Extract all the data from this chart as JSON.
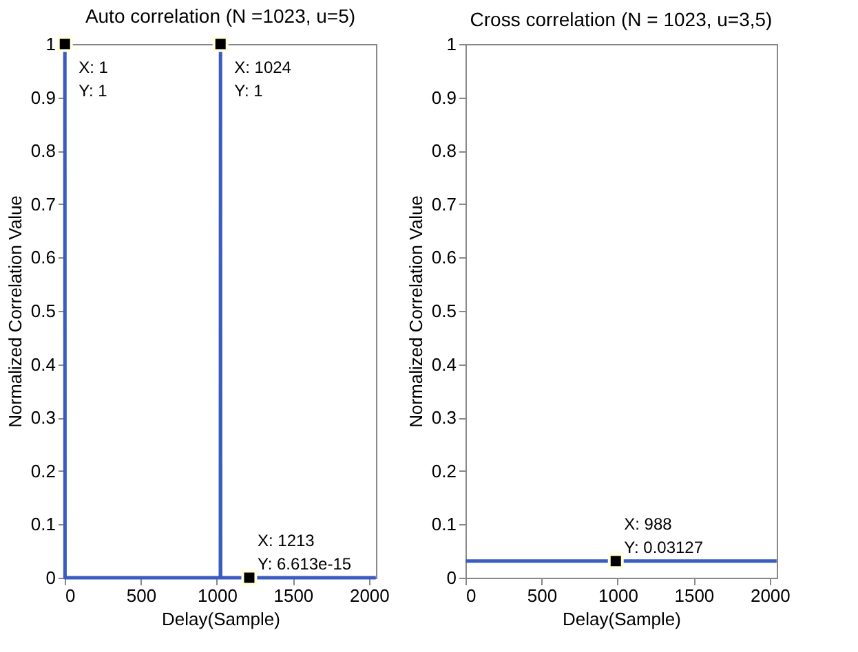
{
  "chart_data": [
    {
      "type": "line",
      "title": "Auto correlation (N =1023, u=5)",
      "xlabel": "Delay(Sample)",
      "ylabel": "Normalized Correlation Value",
      "xlim": [
        0,
        2046
      ],
      "xticks": [
        0,
        500,
        1000,
        1500,
        2000
      ],
      "ylim": [
        0,
        1
      ],
      "yticks": [
        0,
        0.1,
        0.2,
        0.3,
        0.4,
        0.5,
        0.6,
        0.7,
        0.8,
        0.9,
        1
      ],
      "grid": false,
      "series": [
        {
          "color": "#3a5bbf",
          "x": [
            1,
            2,
            1023,
            1024,
            1025,
            2045
          ],
          "values": [
            1,
            0,
            0,
            1,
            0,
            0
          ]
        }
      ],
      "annotations": [
        {
          "text": "X: 1\nY: 1",
          "x": 1,
          "y": 1
        },
        {
          "text": "X: 1024\nY: 1",
          "x": 1024,
          "y": 1
        },
        {
          "text": "X: 1213\nY: 6.613e-15",
          "x": 1213,
          "y": 6.613e-15
        }
      ]
    },
    {
      "type": "line",
      "title": "Cross correlation (N = 1023, u=3,5)",
      "xlabel": "Delay(Sample)",
      "ylabel": "Normalized Correlation Value",
      "xlim": [
        0,
        2046
      ],
      "xticks": [
        0,
        500,
        1000,
        1500,
        2000
      ],
      "ylim": [
        0,
        1
      ],
      "yticks": [
        0,
        0.1,
        0.2,
        0.3,
        0.4,
        0.5,
        0.6,
        0.7,
        0.8,
        0.9,
        1
      ],
      "grid": false,
      "series": [
        {
          "color": "#3a5bbf",
          "x": [
            1,
            988,
            2045
          ],
          "values": [
            0.03127,
            0.03127,
            0.03127
          ]
        }
      ],
      "annotations": [
        {
          "text": "X: 988\nY: 0.03127",
          "x": 988,
          "y": 0.03127
        }
      ]
    }
  ]
}
